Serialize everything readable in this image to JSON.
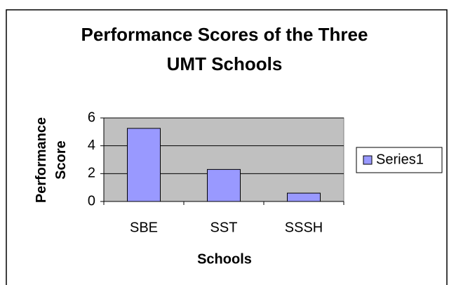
{
  "chart_data": {
    "type": "bar",
    "title": "Performance Scores of the Three UMT Schools",
    "xlabel": "Schools",
    "ylabel": "Performance Score",
    "categories": [
      "SBE",
      "SST",
      "SSSH"
    ],
    "series": [
      {
        "name": "Series1",
        "color": "#9999ff",
        "values": [
          5.25,
          2.3,
          0.6
        ]
      }
    ],
    "ylim": [
      0,
      6
    ],
    "yticks": [
      0,
      2,
      4,
      6
    ],
    "grid": true,
    "legend": "right"
  }
}
